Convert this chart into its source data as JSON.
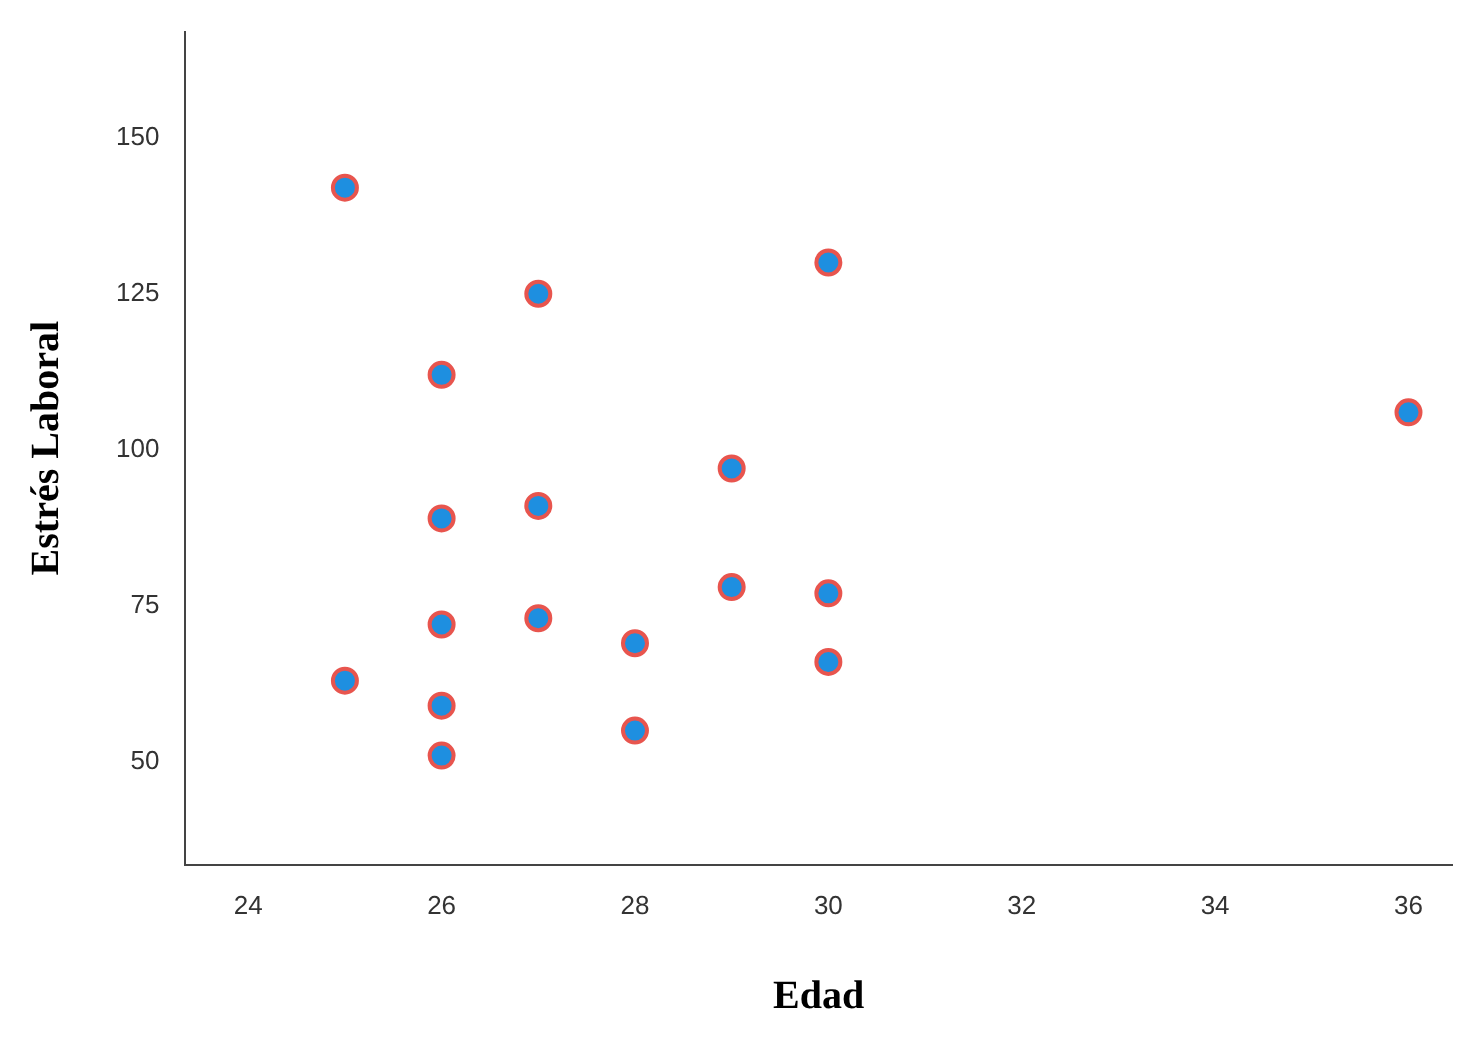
{
  "chart_data": {
    "type": "scatter",
    "xlabel": "Edad",
    "ylabel": "Estrés Laboral",
    "x": [
      25,
      25,
      26,
      26,
      26,
      26,
      26,
      27,
      27,
      27,
      28,
      28,
      29,
      29,
      30,
      30,
      30,
      36
    ],
    "series": [
      {
        "color": "#1e8fe0",
        "values": [
          142,
          63,
          112,
          89,
          72,
          59,
          51,
          125,
          91,
          73,
          69,
          55,
          97,
          78,
          130,
          77,
          66,
          106
        ]
      }
    ],
    "xlim": [
      23.35,
      36.45
    ],
    "xticks": [
      24,
      26,
      28,
      30,
      32,
      34,
      36
    ],
    "ylim": [
      33.5,
      167
    ],
    "yticks": [
      50,
      75,
      100,
      125,
      150
    ],
    "grid": false,
    "legend": false,
    "marker": "circle"
  }
}
